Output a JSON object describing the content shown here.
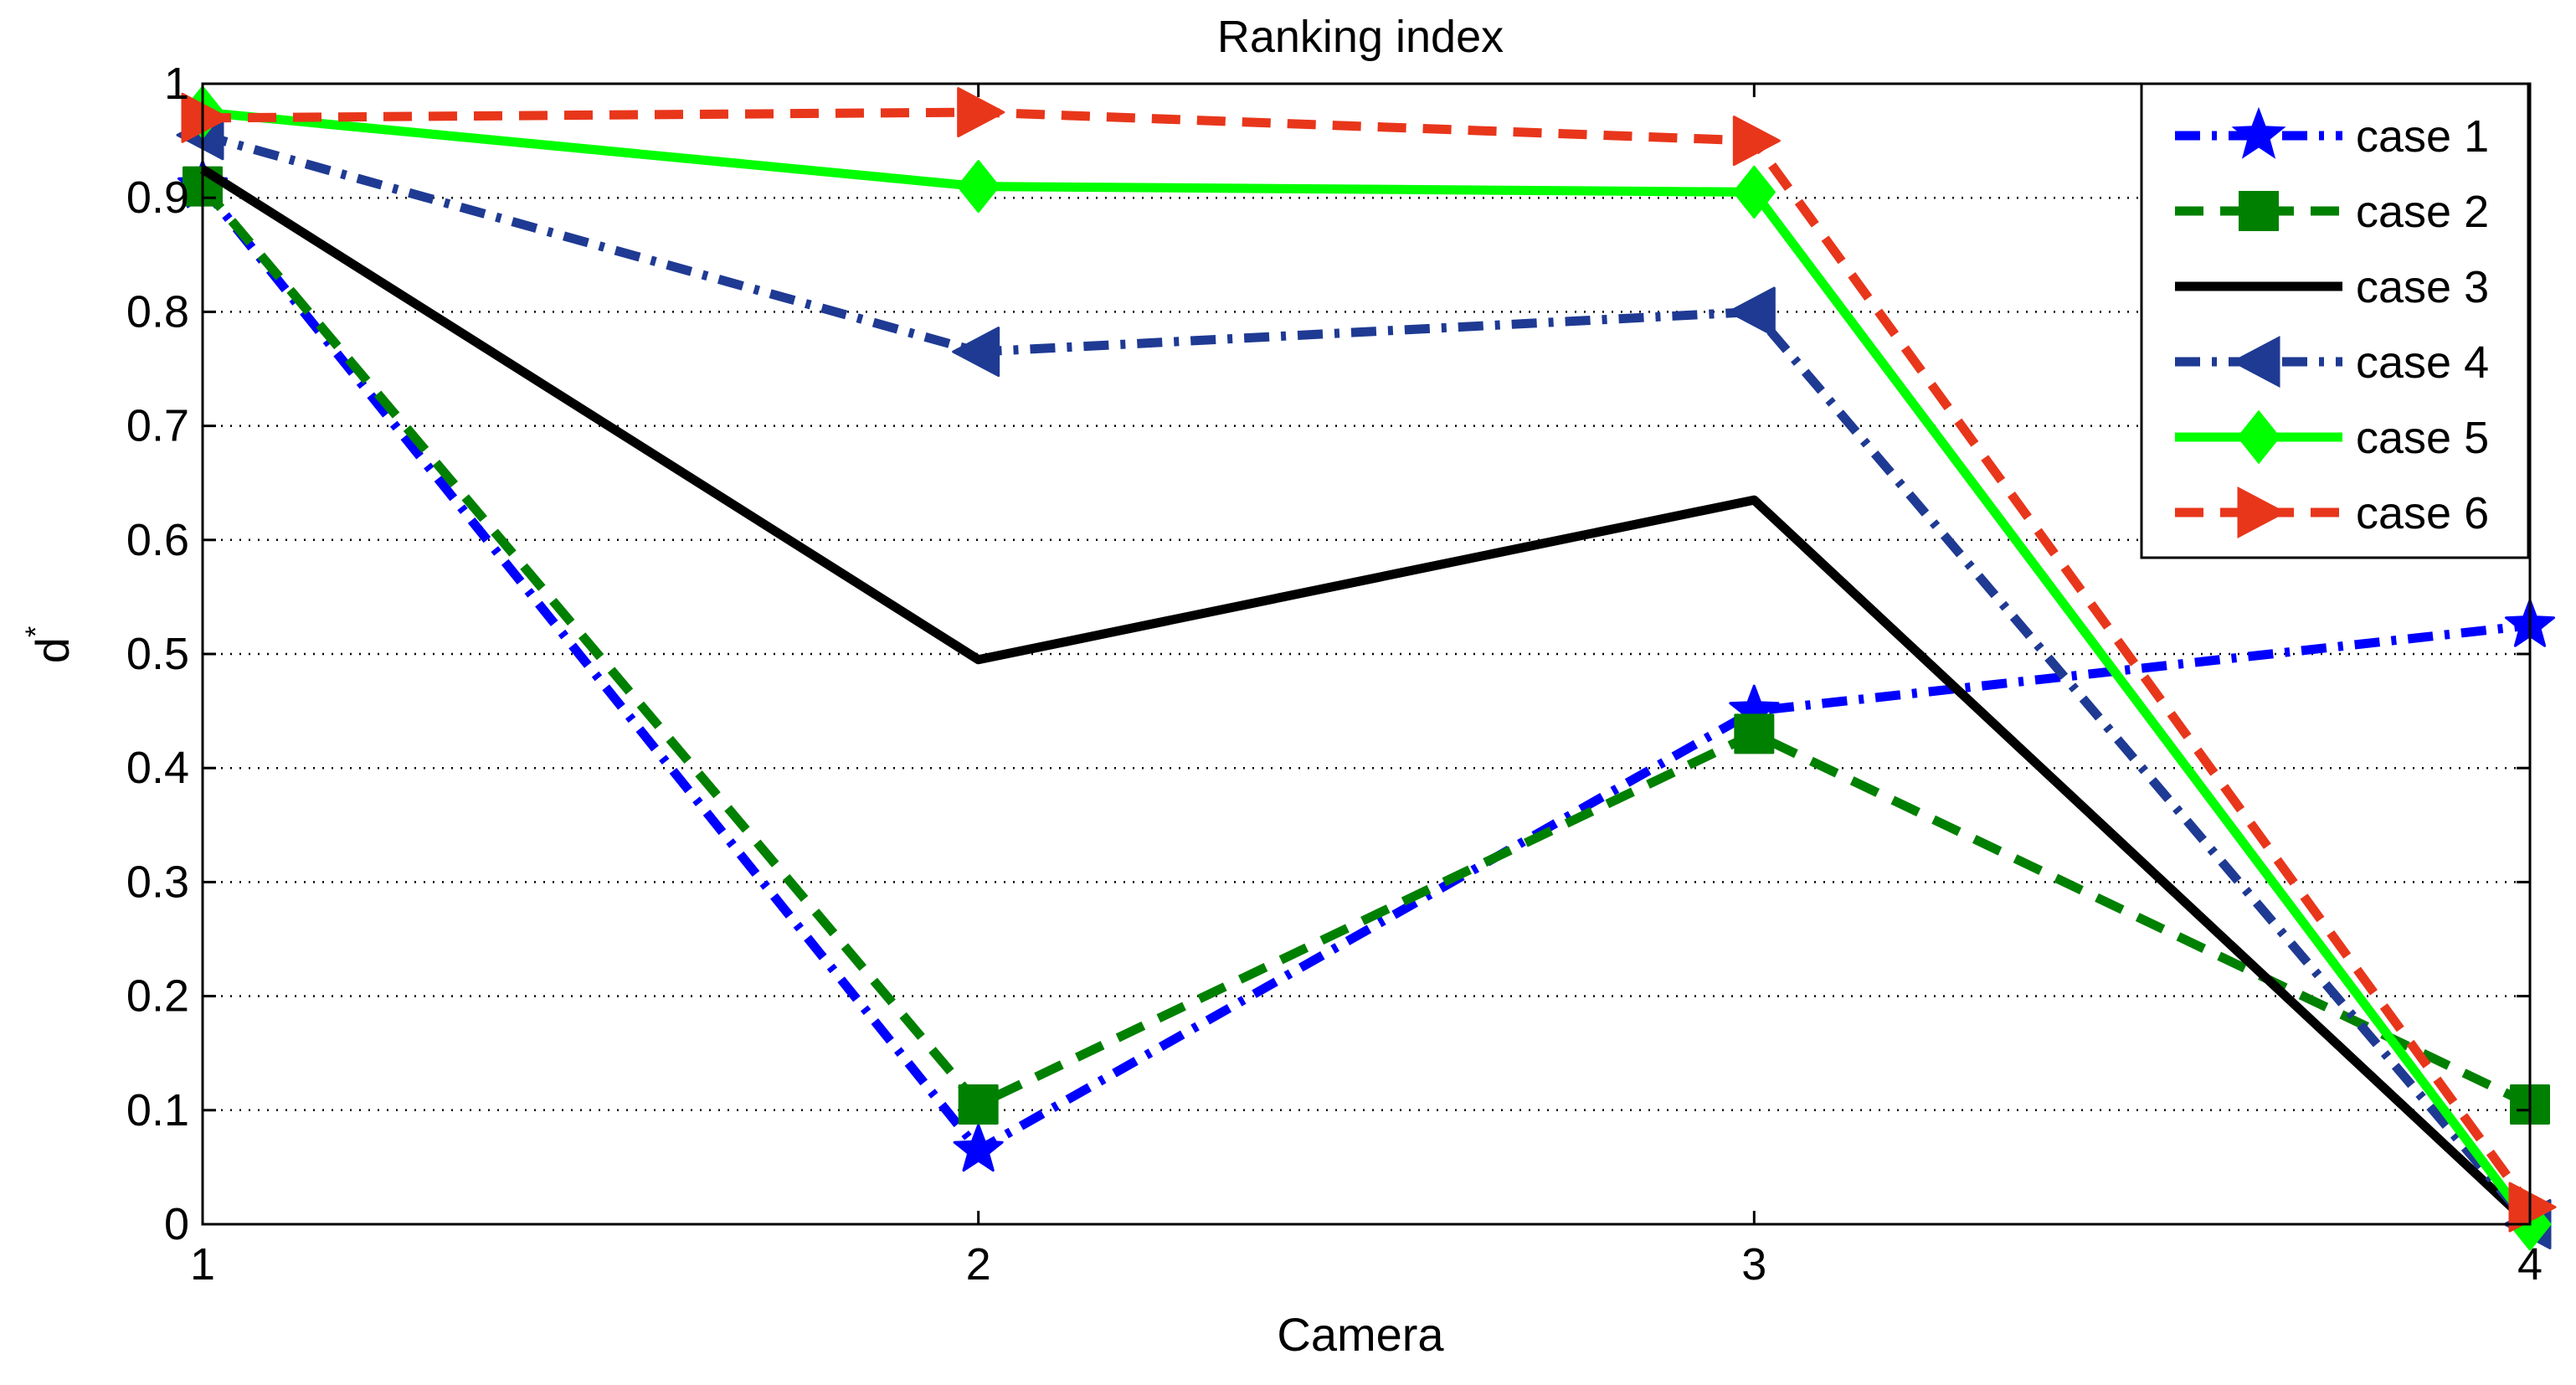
{
  "chart_data": {
    "type": "line",
    "title": "Ranking index",
    "xlabel": "Camera",
    "ylabel": "d",
    "ylabel_superscript": "*",
    "x": [
      1,
      2,
      3,
      4
    ],
    "xlim": [
      1,
      4
    ],
    "ylim": [
      0,
      1
    ],
    "xticks": [
      "1",
      "2",
      "3",
      "4"
    ],
    "yticks": [
      "0",
      "0.1",
      "0.2",
      "0.3",
      "0.4",
      "0.5",
      "0.6",
      "0.7",
      "0.8",
      "0.9",
      "1"
    ],
    "grid": "horizontal dotted",
    "legend_position": "top-right",
    "series": [
      {
        "name": "case 1",
        "values": [
          0.91,
          0.065,
          0.45,
          0.525
        ],
        "color": "#0000ff",
        "style": "dashdot",
        "marker": "star"
      },
      {
        "name": "case 2",
        "values": [
          0.91,
          0.105,
          0.43,
          0.105
        ],
        "color": "#008000",
        "style": "dashed",
        "marker": "square"
      },
      {
        "name": "case 3",
        "values": [
          0.925,
          0.495,
          0.635,
          0.0
        ],
        "color": "#000000",
        "style": "solid",
        "marker": "none"
      },
      {
        "name": "case 4",
        "values": [
          0.955,
          0.765,
          0.8,
          0.0
        ],
        "color": "#1f3a93",
        "style": "dashdot",
        "marker": "triangle-left"
      },
      {
        "name": "case 5",
        "values": [
          0.975,
          0.91,
          0.905,
          0.0
        ],
        "color": "#00ff00",
        "style": "solid",
        "marker": "diamond"
      },
      {
        "name": "case 6",
        "values": [
          0.97,
          0.975,
          0.95,
          0.015
        ],
        "color": "#e8361b",
        "style": "dashed",
        "marker": "triangle-right"
      }
    ]
  }
}
